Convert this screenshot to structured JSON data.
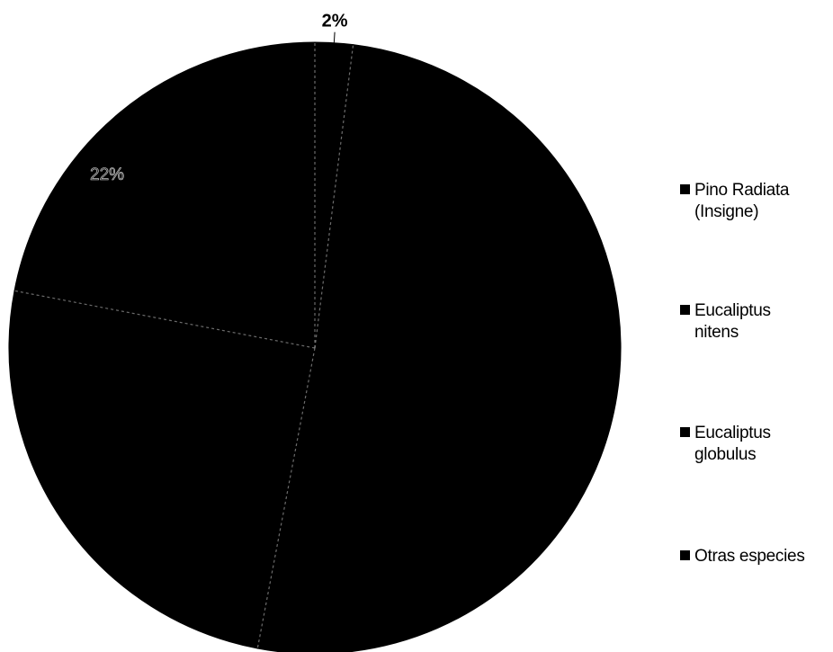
{
  "chart_data": {
    "type": "pie",
    "title": "",
    "slices": [
      {
        "label": "Pino Radiata\n(Insigne)",
        "value": 51,
        "value_label": "",
        "color": "#000000"
      },
      {
        "label": "Eucaliptus nitens",
        "value": 25,
        "value_label": "",
        "color": "#000000"
      },
      {
        "label": "Eucaliptus globulus",
        "value": 22,
        "value_label": "22%",
        "color": "#000000"
      },
      {
        "label": "Otras especies",
        "value": 2,
        "value_label": "2%",
        "color": "#000000"
      }
    ],
    "legend_position": "right"
  },
  "colors": {
    "background": "#ffffff",
    "slice_fill": "#000000",
    "divider": "#9a9a9a",
    "text": "#000000"
  },
  "legend": {
    "items": [
      {
        "label": "Pino Radiata\n(Insigne)"
      },
      {
        "label": "Eucaliptus\nnitens"
      },
      {
        "label": "Eucaliptus\nglobulus"
      },
      {
        "label": "Otras especies"
      }
    ]
  }
}
